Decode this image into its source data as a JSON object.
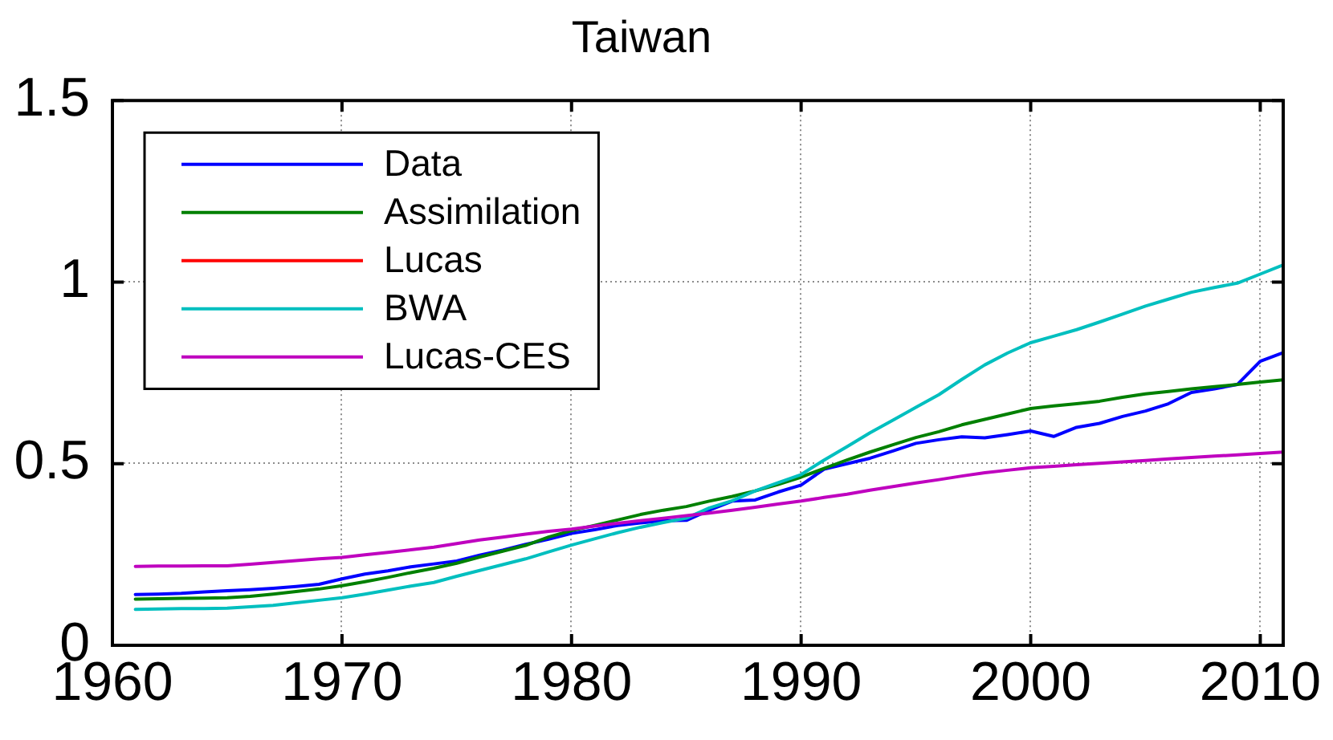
{
  "chart_data": {
    "type": "line",
    "title": "Taiwan",
    "x": [
      1961,
      1962,
      1963,
      1964,
      1965,
      1966,
      1967,
      1968,
      1969,
      1970,
      1971,
      1972,
      1973,
      1974,
      1975,
      1976,
      1977,
      1978,
      1979,
      1980,
      1981,
      1982,
      1983,
      1984,
      1985,
      1986,
      1987,
      1988,
      1989,
      1990,
      1991,
      1992,
      1993,
      1994,
      1995,
      1996,
      1997,
      1998,
      1999,
      2000,
      2001,
      2002,
      2003,
      2004,
      2005,
      2006,
      2007,
      2008,
      2009,
      2010,
      2011
    ],
    "xlim": [
      1960,
      2011
    ],
    "xticks": [
      1960,
      1970,
      1980,
      1990,
      2000,
      2010
    ],
    "ylim": [
      0,
      1.5
    ],
    "yticks": [
      0,
      0.5,
      1,
      1.5
    ],
    "grid": true,
    "legend": "top left",
    "marker": "none",
    "line_style": "solid",
    "series": [
      {
        "name": "Data",
        "color": "#0000ff",
        "values": [
          0.14,
          0.141,
          0.143,
          0.147,
          0.15,
          0.153,
          0.157,
          0.162,
          0.168,
          0.183,
          0.196,
          0.205,
          0.216,
          0.224,
          0.232,
          0.248,
          0.262,
          0.278,
          0.292,
          0.308,
          0.318,
          0.33,
          0.337,
          0.343,
          0.344,
          0.372,
          0.397,
          0.4,
          0.422,
          0.441,
          0.485,
          0.5,
          0.515,
          0.535,
          0.556,
          0.566,
          0.574,
          0.571,
          0.58,
          0.59,
          0.575,
          0.6,
          0.611,
          0.63,
          0.645,
          0.665,
          0.696,
          0.706,
          0.718,
          0.782,
          0.806
        ]
      },
      {
        "name": "Assimilation",
        "color": "#008000",
        "values": [
          0.127,
          0.128,
          0.129,
          0.13,
          0.131,
          0.135,
          0.141,
          0.148,
          0.155,
          0.164,
          0.175,
          0.187,
          0.2,
          0.212,
          0.226,
          0.243,
          0.259,
          0.275,
          0.298,
          0.316,
          0.33,
          0.345,
          0.36,
          0.372,
          0.382,
          0.397,
          0.41,
          0.425,
          0.443,
          0.463,
          0.487,
          0.51,
          0.532,
          0.552,
          0.572,
          0.588,
          0.607,
          0.622,
          0.637,
          0.652,
          0.659,
          0.665,
          0.672,
          0.683,
          0.692,
          0.699,
          0.706,
          0.712,
          0.718,
          0.725,
          0.731
        ]
      },
      {
        "name": "Lucas",
        "color": "#ff0000",
        "values": [
          null,
          null,
          null,
          null,
          null,
          null,
          null,
          null,
          null,
          null,
          null,
          null,
          null,
          null,
          null,
          null,
          null,
          null,
          null,
          null,
          null,
          null,
          null,
          null,
          null,
          null,
          null,
          null,
          null,
          null,
          null,
          null,
          null,
          null,
          null,
          null,
          null,
          null,
          null,
          null,
          null,
          null,
          null,
          null,
          null,
          null,
          null,
          null,
          null,
          null,
          null
        ]
      },
      {
        "name": "BWA",
        "color": "#00bfbf",
        "values": [
          0.099,
          0.1,
          0.101,
          0.101,
          0.102,
          0.106,
          0.11,
          0.117,
          0.124,
          0.131,
          0.141,
          0.152,
          0.163,
          0.173,
          0.19,
          0.206,
          0.222,
          0.238,
          0.257,
          0.276,
          0.293,
          0.31,
          0.325,
          0.338,
          0.35,
          0.378,
          0.398,
          0.425,
          0.448,
          0.47,
          0.51,
          0.547,
          0.585,
          0.62,
          0.655,
          0.69,
          0.732,
          0.772,
          0.805,
          0.833,
          0.851,
          0.869,
          0.89,
          0.912,
          0.934,
          0.953,
          0.972,
          0.985,
          0.997,
          1.022,
          1.047
        ]
      },
      {
        "name": "Lucas-CES",
        "color": "#bf00bf",
        "values": [
          0.217,
          0.218,
          0.218,
          0.219,
          0.219,
          0.223,
          0.228,
          0.233,
          0.238,
          0.242,
          0.249,
          0.256,
          0.263,
          0.27,
          0.28,
          0.29,
          0.298,
          0.306,
          0.314,
          0.32,
          0.328,
          0.336,
          0.343,
          0.35,
          0.357,
          0.364,
          0.372,
          0.38,
          0.389,
          0.397,
          0.407,
          0.416,
          0.427,
          0.437,
          0.447,
          0.456,
          0.466,
          0.475,
          0.482,
          0.489,
          0.493,
          0.497,
          0.501,
          0.505,
          0.509,
          0.513,
          0.517,
          0.521,
          0.524,
          0.528,
          0.532
        ]
      }
    ]
  }
}
